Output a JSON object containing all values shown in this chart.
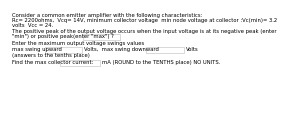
{
  "bg_color": "#ffffff",
  "text_color": "#000000",
  "line1": "Consider a common emitter amplifier with the following characteristics:",
  "line2": "Rc= 2200ohms,  Vcq= 14V, minimum collector voltage  min node voltage at collector :Vc(min)= 3.2",
  "line3": "volts  Vcc = 24.",
  "line4": "The positive peak of the output voltage occurs when the input voltage is at its negative peak (enter",
  "line5a": "\"min\") or positive peak(enter \"max\") ?",
  "line6": "Enter the maximum output voltage swings values",
  "line7a": "max swing upward",
  "line7b": "Volts,  max swing downward",
  "line7c": "Volts",
  "line8": "(answers to the tenths place)",
  "line9a": "Find the max collector current:",
  "line9b": "mA (ROUND to the TENTHS place) NO UNITS.",
  "font_size": 3.8,
  "box_edge_color": "#bbbbbb",
  "box_face_color": "#ffffff"
}
